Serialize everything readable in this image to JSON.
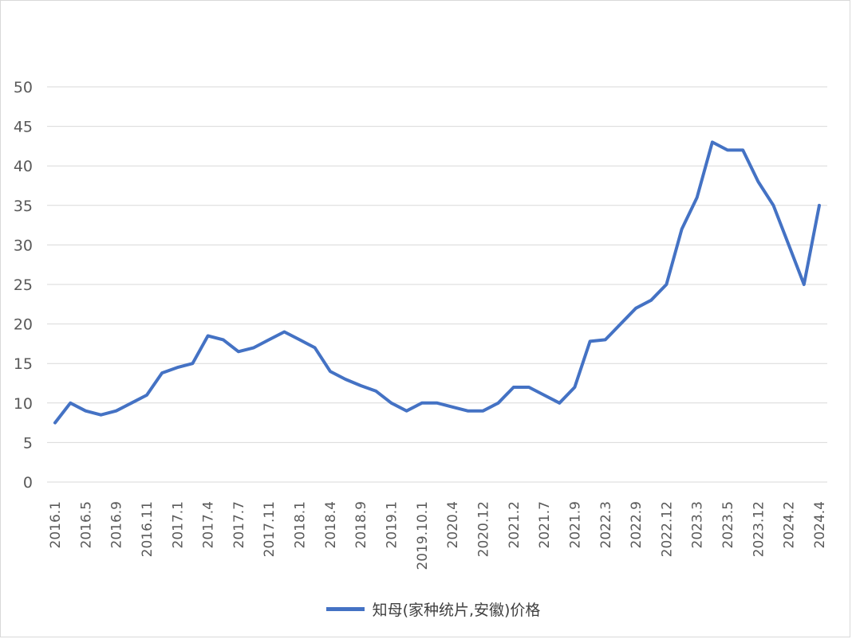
{
  "chart_data": {
    "type": "line",
    "title": "",
    "xlabel": "",
    "ylabel": "",
    "ylim": [
      0,
      50
    ],
    "yticks": [
      0,
      5,
      10,
      15,
      20,
      25,
      30,
      35,
      40,
      45,
      50
    ],
    "grid": true,
    "legend_position": "bottom",
    "line_color": "#4472c4",
    "x_tick_labels": [
      "2016.1",
      "2016.5",
      "2016.9",
      "2016.11",
      "2017.1",
      "2017.4",
      "2017.7",
      "2017.11",
      "2018.1",
      "2018.4",
      "2018.9",
      "2019.1",
      "2019.10.1",
      "2020.4",
      "2020.12",
      "2021.2",
      "2021.7",
      "2021.9",
      "2022.3",
      "2022.9",
      "2022.12",
      "2023.3",
      "2023.5",
      "2023.12",
      "2024.2",
      "2024.4"
    ],
    "series": [
      {
        "name": "知母(家种统片,安徽)价格",
        "values": [
          7.5,
          10,
          9,
          8.5,
          9,
          10,
          11,
          13.8,
          14.5,
          15,
          18.5,
          18,
          16.5,
          17,
          18,
          19,
          18,
          17,
          14,
          13,
          12.2,
          11.5,
          10,
          9,
          10,
          10,
          9.5,
          9,
          9,
          10,
          12,
          12,
          11,
          10,
          12,
          17.8,
          18,
          20,
          22,
          23,
          25,
          32,
          36,
          43,
          42,
          42,
          38,
          35,
          30,
          25,
          35
        ]
      }
    ]
  },
  "legend": {
    "label": "知母(家种统片,安徽)价格"
  }
}
